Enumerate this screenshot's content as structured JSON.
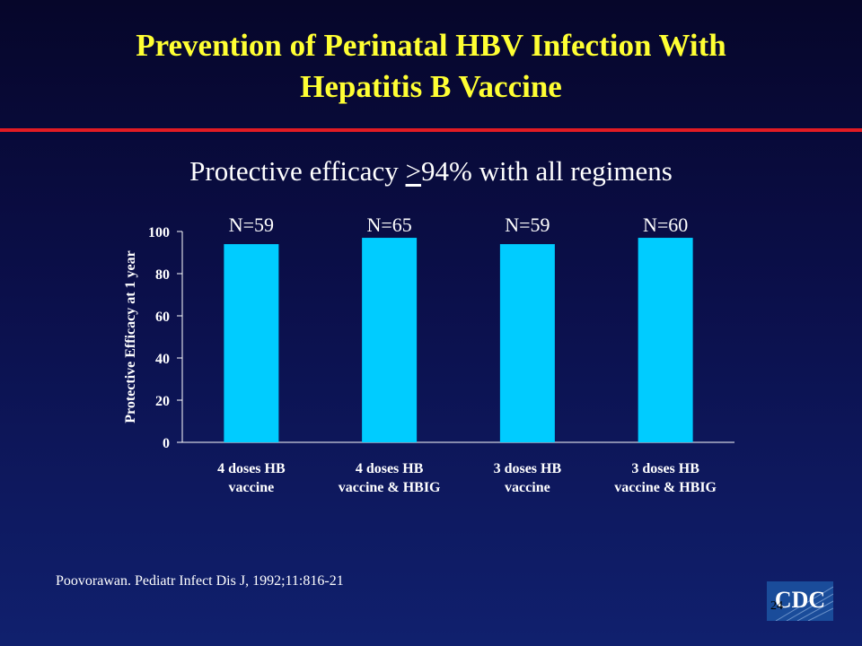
{
  "slide": {
    "title_line1": "Prevention of Perinatal HBV Infection With",
    "title_line2": "Hepatitis B Vaccine",
    "subtitle_prefix": "Protective efficacy ",
    "subtitle_ge": ">",
    "subtitle_suffix": "94% with all regimens",
    "citation": "Poovorawan. Pediatr Infect Dis J, 1992;11:816-21",
    "slide_number": "24",
    "logo_text": "CDC"
  },
  "colors": {
    "title": "#ffff33",
    "rule": "#e21b23",
    "bar": "#00ccff",
    "text": "#ffffff"
  },
  "chart_data": {
    "type": "bar",
    "categories": [
      [
        "4 doses HB",
        "vaccine"
      ],
      [
        "4 doses HB",
        "vaccine & HBIG"
      ],
      [
        "3 doses HB",
        "vaccine"
      ],
      [
        "3 doses HB",
        "vaccine & HBIG"
      ]
    ],
    "values": [
      94,
      97,
      94,
      97
    ],
    "n_labels": [
      "N=59",
      "N=65",
      "N=59",
      "N=60"
    ],
    "ylabel": "Protective Efficacy at 1 year",
    "ylim": [
      0,
      100
    ],
    "yticks": [
      0,
      20,
      40,
      60,
      80,
      100
    ],
    "grid": false,
    "legend": "none"
  }
}
